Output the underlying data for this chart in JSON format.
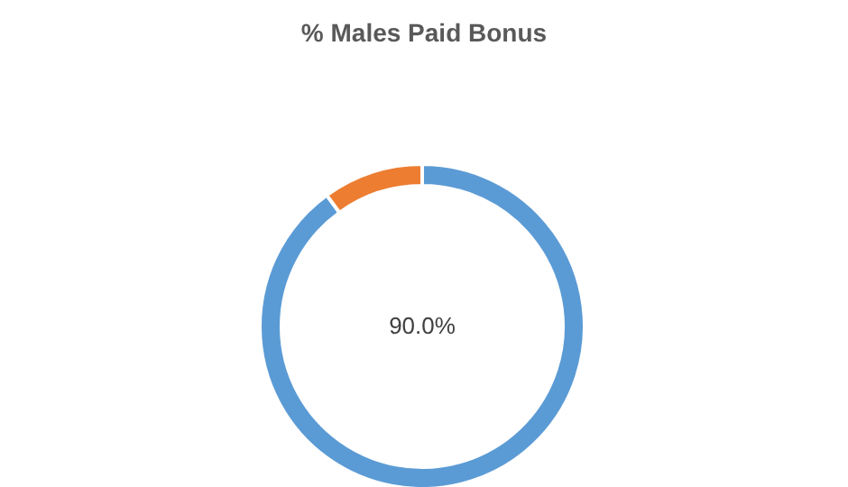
{
  "chart_data": {
    "type": "donut",
    "title": "% Males Paid Bonus",
    "categories": [
      null,
      null
    ],
    "values": [
      90,
      10
    ],
    "colors": [
      "#5b9bd5",
      "#ed7d31"
    ],
    "value_labels": [
      "90.0%",
      null
    ]
  }
}
